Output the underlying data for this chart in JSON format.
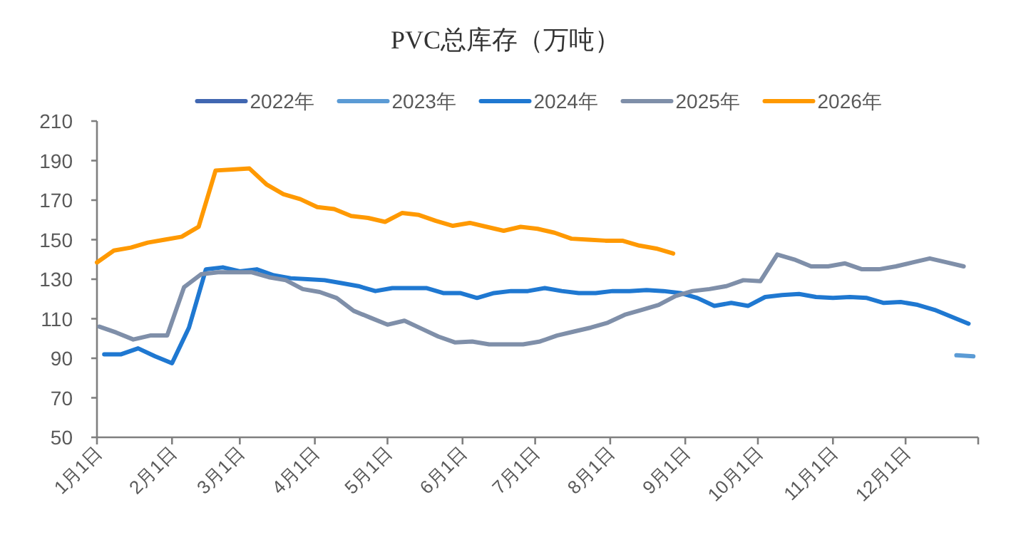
{
  "chart_data": {
    "type": "line",
    "title": "PVC总库存（万吨）",
    "legend": "top",
    "grid": false,
    "marker": "none",
    "line_style": "solid",
    "xlim": [
      "--01-01",
      "--12-31"
    ],
    "xticks": [
      {
        "value": "--01-01",
        "label": "1月1日"
      },
      {
        "value": "--02-01",
        "label": "2月1日"
      },
      {
        "value": "--03-01",
        "label": "3月1日"
      },
      {
        "value": "--04-01",
        "label": "4月1日"
      },
      {
        "value": "--05-01",
        "label": "5月1日"
      },
      {
        "value": "--06-01",
        "label": "6月1日"
      },
      {
        "value": "--07-01",
        "label": "7月1日"
      },
      {
        "value": "--08-01",
        "label": "8月1日"
      },
      {
        "value": "--09-01",
        "label": "9月1日"
      },
      {
        "value": "--10-01",
        "label": "10月1日"
      },
      {
        "value": "--11-01",
        "label": "11月1日"
      },
      {
        "value": "--12-01",
        "label": "12月1日"
      },
      {
        "value": "--12-31",
        "label": null
      }
    ],
    "ylim": [
      50,
      210
    ],
    "yticks": [
      50,
      70,
      90,
      110,
      130,
      150,
      170,
      190,
      210
    ],
    "series": [
      {
        "name": "2022年",
        "color": "#4167b1"
      },
      {
        "name": "2023年",
        "color": "#5b9bd5",
        "x": [
          "--12-22",
          "--12-29"
        ],
        "values": [
          91.5,
          91
        ]
      },
      {
        "name": "2024年",
        "color": "#1f78d1",
        "x": [
          "--01-04",
          "--01-11",
          "--01-18",
          "--01-25",
          "--02-01",
          "--02-08",
          "--02-15",
          "--02-22",
          "--03-01",
          "--03-08",
          "--03-15",
          "--03-22",
          "--03-29",
          "--04-05",
          "--04-12",
          "--04-19",
          "--04-26",
          "--05-03",
          "--05-10",
          "--05-17",
          "--05-24",
          "--05-31",
          "--06-07",
          "--06-14",
          "--06-21",
          "--06-28",
          "--07-05",
          "--07-12",
          "--07-19",
          "--07-26",
          "--08-02",
          "--08-09",
          "--08-16",
          "--08-23",
          "--08-30",
          "--09-06",
          "--09-13",
          "--09-20",
          "--09-27",
          "--10-04",
          "--10-11",
          "--10-18",
          "--10-25",
          "--11-01",
          "--11-08",
          "--11-15",
          "--11-22",
          "--11-29",
          "--12-06",
          "--12-13",
          "--12-20",
          "--12-27"
        ],
        "values": [
          92,
          92,
          95,
          91,
          87.5,
          105.5,
          135,
          136,
          134,
          135,
          132,
          130.5,
          130,
          129.5,
          128,
          126.5,
          124,
          125.5,
          125.5,
          125.5,
          123,
          123,
          120.5,
          123,
          124,
          124,
          125.5,
          124,
          123,
          123,
          124,
          124,
          124.5,
          124,
          123,
          120.5,
          116.5,
          118,
          116.5,
          121,
          122,
          122.5,
          121,
          120.5,
          121,
          120.5,
          118,
          118.5,
          117,
          114.5,
          111,
          107.5
        ]
      },
      {
        "name": "2025年",
        "color": "#7f8fa9",
        "x": [
          "--01-02",
          "--01-09",
          "--01-16",
          "--01-23",
          "--01-30",
          "--02-06",
          "--02-13",
          "--02-20",
          "--02-27",
          "--03-06",
          "--03-13",
          "--03-20",
          "--03-27",
          "--04-03",
          "--04-10",
          "--04-17",
          "--04-24",
          "--05-01",
          "--05-08",
          "--05-15",
          "--05-22",
          "--05-29",
          "--06-05",
          "--06-12",
          "--06-19",
          "--06-26",
          "--07-03",
          "--07-10",
          "--07-17",
          "--07-24",
          "--07-31",
          "--08-07",
          "--08-14",
          "--08-21",
          "--08-28",
          "--09-04",
          "--09-11",
          "--09-18",
          "--09-25",
          "--10-02",
          "--10-09",
          "--10-16",
          "--10-23",
          "--10-30",
          "--11-06",
          "--11-13",
          "--11-20",
          "--11-27",
          "--12-04",
          "--12-11",
          "--12-18",
          "--12-25"
        ],
        "values": [
          106,
          103,
          99.5,
          101.5,
          101.5,
          126,
          132.5,
          133.5,
          133.5,
          133.5,
          131,
          129.5,
          125,
          123.5,
          120.5,
          114,
          110.5,
          107,
          109,
          105,
          101,
          98,
          98.5,
          97,
          97,
          97,
          98.5,
          101.5,
          103.5,
          105.5,
          108,
          112,
          114.5,
          117,
          121.5,
          124,
          125,
          126.5,
          129.5,
          129,
          142.5,
          140,
          136.5,
          136.5,
          138,
          135,
          135,
          136.5,
          138.5,
          140.5,
          138.5,
          136.5
        ]
      },
      {
        "name": "2026年",
        "color": "#ff9900",
        "x": [
          "--01-01",
          "--01-08",
          "--01-15",
          "--01-22",
          "--01-29",
          "--02-05",
          "--02-12",
          "--02-19",
          "--02-26",
          "--03-05",
          "--03-12",
          "--03-19",
          "--03-26",
          "--04-02",
          "--04-09",
          "--04-16",
          "--04-23",
          "--04-30",
          "--05-07",
          "--05-14",
          "--05-21",
          "--05-28",
          "--06-04",
          "--06-11",
          "--06-18",
          "--06-25",
          "--07-02",
          "--07-09",
          "--07-16",
          "--07-23",
          "--07-30",
          "--08-06",
          "--08-13",
          "--08-20",
          "--08-27"
        ],
        "values": [
          138.5,
          144.5,
          146,
          148.5,
          150,
          151.5,
          156.5,
          185,
          185.5,
          186,
          178,
          173,
          170.5,
          166.5,
          165.5,
          162,
          161,
          159,
          163.5,
          162.5,
          159.5,
          157,
          158.5,
          156.5,
          154.5,
          156.5,
          155.5,
          153.5,
          150.5,
          150,
          149.5,
          149.5,
          147,
          145.5,
          143
        ]
      }
    ]
  }
}
